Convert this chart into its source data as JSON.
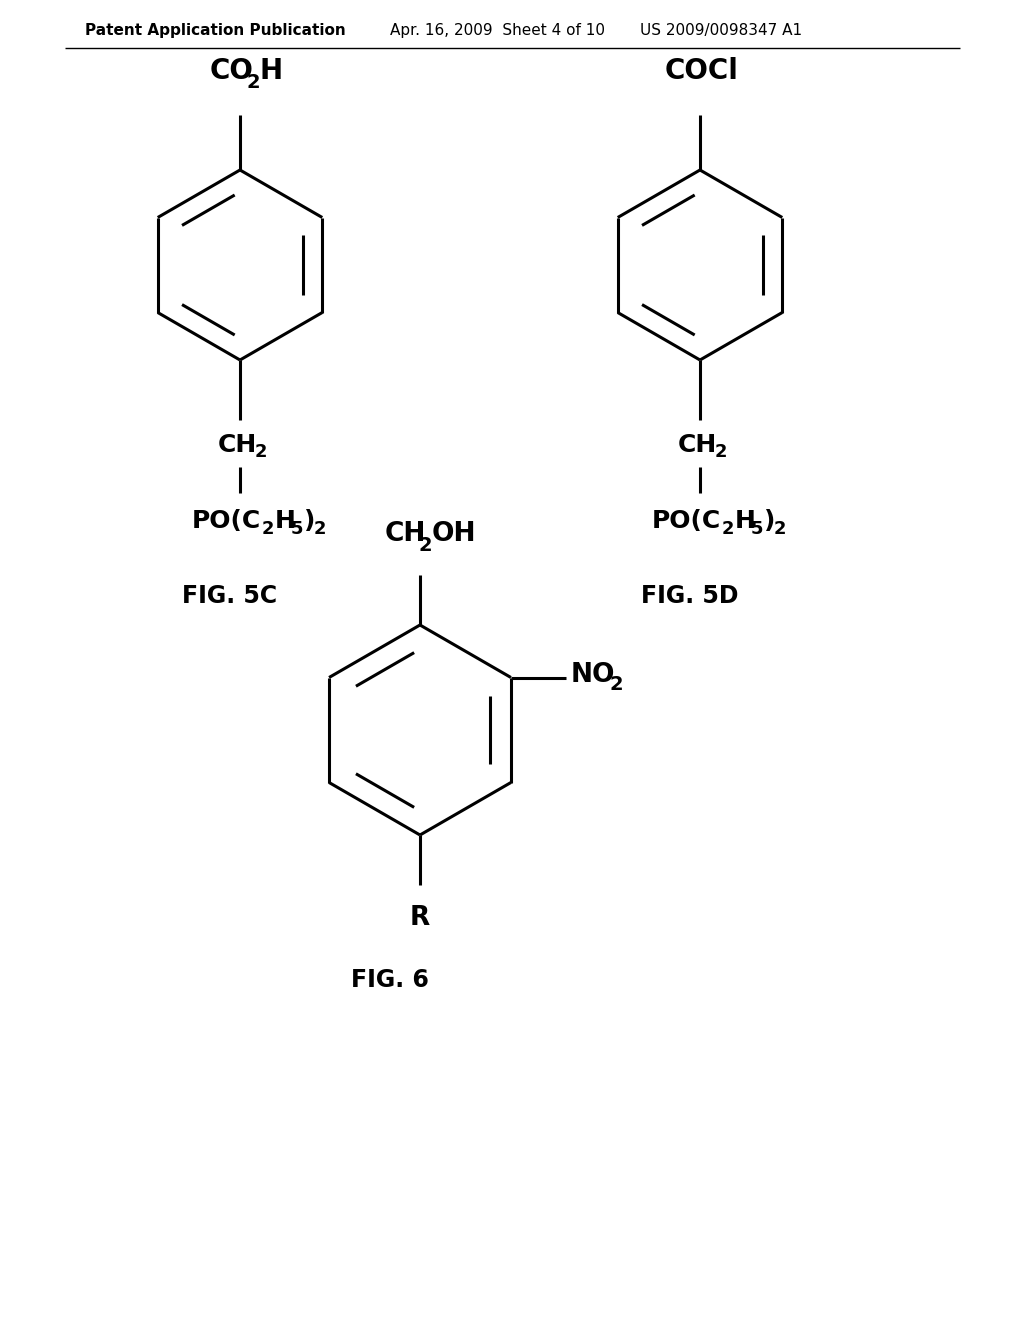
{
  "header_left": "Patent Application Publication",
  "header_mid": "Apr. 16, 2009  Sheet 4 of 10",
  "header_right": "US 2009/0098347 A1",
  "fig5c_label": "FIG. 5C",
  "fig5d_label": "FIG. 5D",
  "fig6_label": "FIG. 6",
  "background": "#ffffff",
  "line_color": "#000000",
  "text_color": "#000000",
  "lw": 2.2
}
